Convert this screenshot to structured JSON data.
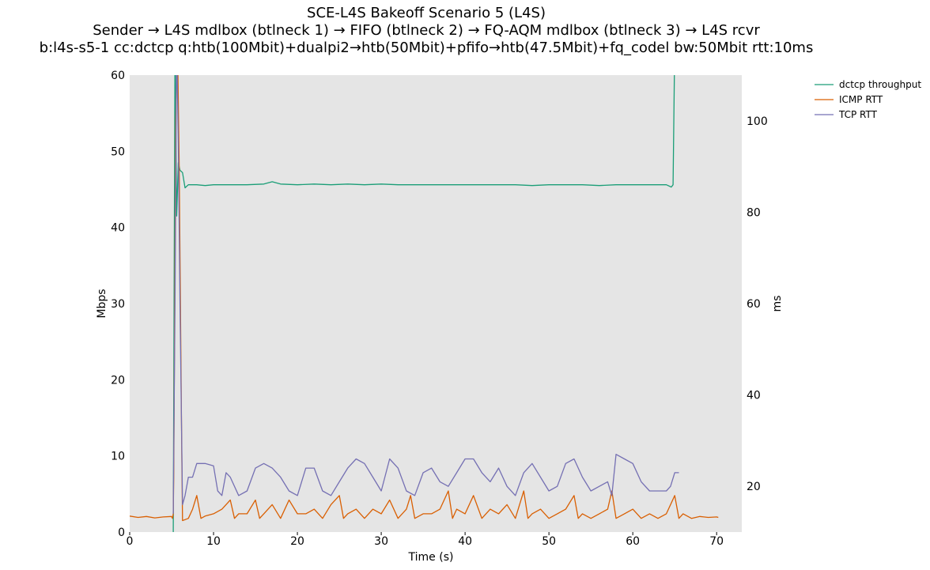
{
  "title": {
    "line1": "SCE-L4S Bakeoff Scenario 5 (L4S)",
    "line2": "Sender → L4S mdlbox (btlneck 1) → FIFO (btlneck 2) → FQ-AQM mdlbox (btlneck 3) → L4S rcvr",
    "line3": "b:l4s-s5-1 cc:dctcp q:htb(100Mbit)+dualpi2→htb(50Mbit)+pfifo→htb(47.5Mbit)+fq_codel bw:50Mbit rtt:10ms"
  },
  "chart_data": {
    "type": "line",
    "xlabel": "Time (s)",
    "ylabel_left": "Mbps",
    "ylabel_right": "ms",
    "xlim": [
      0,
      73
    ],
    "ylim_left": [
      0,
      60
    ],
    "ylim_right": [
      10,
      110
    ],
    "x_ticks": [
      "0",
      "10",
      "20",
      "30",
      "40",
      "50",
      "60",
      "70"
    ],
    "y_left_ticks": [
      "0",
      "10",
      "20",
      "30",
      "40",
      "50",
      "60"
    ],
    "y_right_ticks": [
      "20",
      "40",
      "60",
      "80",
      "100"
    ],
    "grid": false,
    "background": "#e5e5e5",
    "legend_position": "outside-top-right",
    "series": [
      {
        "name": "dctcp throughput",
        "axis": "left",
        "color": "#1b9e77",
        "points": [
          [
            5.2,
            0
          ],
          [
            5.4,
            64
          ],
          [
            5.6,
            41.5
          ],
          [
            5.8,
            48.5
          ],
          [
            6.0,
            47.5
          ],
          [
            6.3,
            47.2
          ],
          [
            6.6,
            45.2
          ],
          [
            7.0,
            45.6
          ],
          [
            8,
            45.6
          ],
          [
            9,
            45.5
          ],
          [
            10,
            45.6
          ],
          [
            12,
            45.6
          ],
          [
            14,
            45.6
          ],
          [
            16,
            45.7
          ],
          [
            17,
            46.0
          ],
          [
            18,
            45.7
          ],
          [
            20,
            45.6
          ],
          [
            22,
            45.7
          ],
          [
            24,
            45.6
          ],
          [
            26,
            45.7
          ],
          [
            28,
            45.6
          ],
          [
            30,
            45.7
          ],
          [
            32,
            45.6
          ],
          [
            34,
            45.6
          ],
          [
            36,
            45.6
          ],
          [
            38,
            45.6
          ],
          [
            40,
            45.6
          ],
          [
            42,
            45.6
          ],
          [
            44,
            45.6
          ],
          [
            46,
            45.6
          ],
          [
            48,
            45.5
          ],
          [
            50,
            45.6
          ],
          [
            52,
            45.6
          ],
          [
            54,
            45.6
          ],
          [
            56,
            45.5
          ],
          [
            58,
            45.6
          ],
          [
            60,
            45.6
          ],
          [
            62,
            45.6
          ],
          [
            64,
            45.6
          ],
          [
            64.6,
            45.3
          ],
          [
            64.8,
            45.6
          ],
          [
            65.0,
            64
          ]
        ]
      },
      {
        "name": "ICMP RTT",
        "axis": "right",
        "color": "#d95f02",
        "points": [
          [
            0,
            13.5
          ],
          [
            1,
            13.2
          ],
          [
            2,
            13.4
          ],
          [
            3,
            13.1
          ],
          [
            4,
            13.3
          ],
          [
            5,
            13.4
          ],
          [
            5.1,
            13.0
          ],
          [
            5.2,
            14
          ],
          [
            5.25,
            22
          ],
          [
            5.5,
            100
          ],
          [
            5.7,
            118
          ],
          [
            5.9,
            90
          ],
          [
            6.2,
            30
          ],
          [
            6.3,
            12.5
          ],
          [
            7,
            13
          ],
          [
            7.5,
            15
          ],
          [
            8,
            18
          ],
          [
            8.5,
            13
          ],
          [
            9,
            13.5
          ],
          [
            10,
            14
          ],
          [
            11,
            15
          ],
          [
            12,
            17
          ],
          [
            12.5,
            13
          ],
          [
            13,
            14
          ],
          [
            14,
            14
          ],
          [
            15,
            17
          ],
          [
            15.5,
            13
          ],
          [
            16,
            14
          ],
          [
            17,
            16
          ],
          [
            18,
            13
          ],
          [
            19,
            17
          ],
          [
            20,
            14
          ],
          [
            21,
            14
          ],
          [
            22,
            15
          ],
          [
            23,
            13
          ],
          [
            24,
            16
          ],
          [
            25,
            18
          ],
          [
            25.5,
            13
          ],
          [
            26,
            14
          ],
          [
            27,
            15
          ],
          [
            28,
            13
          ],
          [
            29,
            15
          ],
          [
            30,
            14
          ],
          [
            31,
            17
          ],
          [
            32,
            13
          ],
          [
            33,
            15
          ],
          [
            33.5,
            18
          ],
          [
            34,
            13
          ],
          [
            35,
            14
          ],
          [
            36,
            14
          ],
          [
            37,
            15
          ],
          [
            38,
            19
          ],
          [
            38.5,
            13
          ],
          [
            39,
            15
          ],
          [
            40,
            14
          ],
          [
            41,
            18
          ],
          [
            42,
            13
          ],
          [
            43,
            15
          ],
          [
            44,
            14
          ],
          [
            45,
            16
          ],
          [
            46,
            13
          ],
          [
            47,
            19
          ],
          [
            47.5,
            13
          ],
          [
            48,
            14
          ],
          [
            49,
            15
          ],
          [
            50,
            13
          ],
          [
            51,
            14
          ],
          [
            52,
            15
          ],
          [
            53,
            18
          ],
          [
            53.5,
            13
          ],
          [
            54,
            14
          ],
          [
            55,
            13
          ],
          [
            56,
            14
          ],
          [
            57,
            15
          ],
          [
            57.5,
            19
          ],
          [
            58,
            13
          ],
          [
            59,
            14
          ],
          [
            60,
            15
          ],
          [
            61,
            13
          ],
          [
            62,
            14
          ],
          [
            63,
            13
          ],
          [
            64,
            14
          ],
          [
            65,
            18
          ],
          [
            65.5,
            13
          ],
          [
            66,
            14
          ],
          [
            67,
            13
          ],
          [
            68,
            13.4
          ],
          [
            69,
            13.2
          ],
          [
            70,
            13.3
          ],
          [
            70.2,
            13.2
          ]
        ]
      },
      {
        "name": "TCP RTT",
        "axis": "right",
        "color": "#7570b3",
        "points": [
          [
            5.2,
            14
          ],
          [
            5.4,
            60
          ],
          [
            5.6,
            118
          ],
          [
            5.8,
            95
          ],
          [
            6.0,
            60
          ],
          [
            6.3,
            16
          ],
          [
            6.6,
            18
          ],
          [
            7,
            22
          ],
          [
            7.5,
            22
          ],
          [
            8,
            25
          ],
          [
            9,
            25
          ],
          [
            10,
            24.5
          ],
          [
            10.5,
            19
          ],
          [
            11,
            18
          ],
          [
            11.5,
            23
          ],
          [
            12,
            22
          ],
          [
            13,
            18
          ],
          [
            14,
            19
          ],
          [
            15,
            24
          ],
          [
            16,
            25
          ],
          [
            17,
            24
          ],
          [
            18,
            22
          ],
          [
            19,
            19
          ],
          [
            20,
            18
          ],
          [
            21,
            24
          ],
          [
            22,
            24
          ],
          [
            23,
            19
          ],
          [
            24,
            18
          ],
          [
            25,
            21
          ],
          [
            26,
            24
          ],
          [
            27,
            26
          ],
          [
            28,
            25
          ],
          [
            29,
            22
          ],
          [
            30,
            19
          ],
          [
            31,
            26
          ],
          [
            32,
            24
          ],
          [
            33,
            19
          ],
          [
            34,
            18
          ],
          [
            35,
            23
          ],
          [
            36,
            24
          ],
          [
            37,
            21
          ],
          [
            38,
            20
          ],
          [
            39,
            23
          ],
          [
            40,
            26
          ],
          [
            41,
            26
          ],
          [
            42,
            23
          ],
          [
            43,
            21
          ],
          [
            44,
            24
          ],
          [
            45,
            20
          ],
          [
            46,
            18
          ],
          [
            47,
            23
          ],
          [
            48,
            25
          ],
          [
            49,
            22
          ],
          [
            50,
            19
          ],
          [
            51,
            20
          ],
          [
            52,
            25
          ],
          [
            53,
            26
          ],
          [
            54,
            22
          ],
          [
            55,
            19
          ],
          [
            56,
            20
          ],
          [
            57,
            21
          ],
          [
            57.5,
            18
          ],
          [
            58,
            27
          ],
          [
            59,
            26
          ],
          [
            60,
            25
          ],
          [
            61,
            21
          ],
          [
            62,
            19
          ],
          [
            63,
            19
          ],
          [
            64,
            19
          ],
          [
            64.5,
            20
          ],
          [
            65,
            23
          ],
          [
            65.5,
            23
          ]
        ]
      }
    ]
  }
}
